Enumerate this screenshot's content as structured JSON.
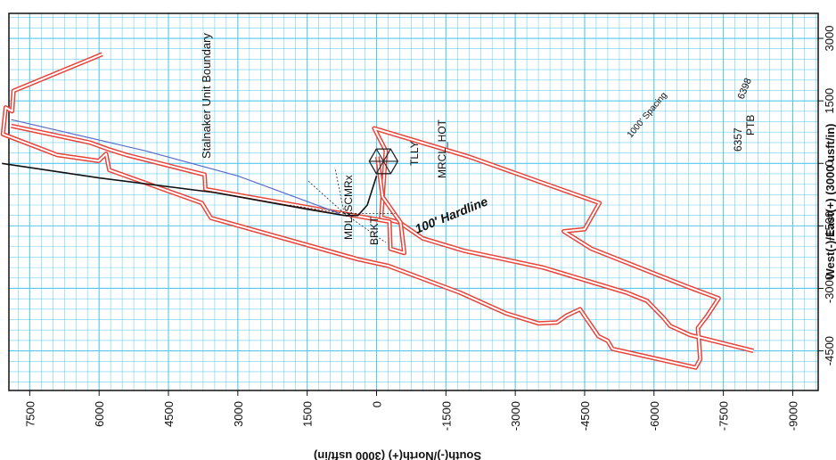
{
  "chart_data": {
    "type": "line",
    "xlabel": "South(-)/North(+) (3000 usft/in)",
    "ylabel": "West(-)/East(+) (3000 usft/in)",
    "x_ticks": [
      "7500",
      "6000",
      "4500",
      "3000",
      "1500",
      "0",
      "-1500",
      "-3000",
      "-4500",
      "-6000",
      "-7500",
      "-9000"
    ],
    "x_tick_values": [
      7500,
      6000,
      4500,
      3000,
      1500,
      0,
      -1500,
      -3000,
      -4500,
      -6000,
      -7500,
      -9000
    ],
    "y_ticks": [
      "3000",
      "1500",
      "0",
      "-1500",
      "-3000",
      "-4500"
    ],
    "y_tick_values": [
      3000,
      1500,
      0,
      -1500,
      -3000,
      -4500
    ],
    "xlim": [
      7950,
      -9550
    ],
    "ylim": [
      3600,
      -5450
    ],
    "grid": true,
    "colors": {
      "grid": "#55c8ee",
      "boundary": "#e8443a",
      "wellpath_black": "#111111",
      "wellpath_blue": "#5a6cc8",
      "hardline_label": "#e8443a",
      "blue_label": "#5a6cc8"
    },
    "annotations": {
      "unit_boundary": "Stalnaker Unit Boundary",
      "hardline": "100' Hardline",
      "spacing": "1000' Spacing",
      "well_6398": "6398",
      "well_6357": "6357",
      "ptb": "PTB",
      "mrcl_hot": "MRCL_HOT",
      "tlly": "TLLY",
      "mdl_scmr": "MDLxSCMRx",
      "brkt": "BRKT"
    },
    "series": [
      {
        "style": "boundary",
        "points": [
          [
            5930,
            2620
          ],
          [
            7850,
            1740
          ],
          [
            7880,
            1250
          ],
          [
            8020,
            1340
          ],
          [
            8080,
            700
          ],
          [
            6900,
            200
          ],
          [
            6010,
            60
          ],
          [
            5850,
            230
          ],
          [
            5780,
            -160
          ],
          [
            3780,
            -950
          ],
          [
            3580,
            -1310
          ],
          [
            400,
            -2300
          ],
          [
            -250,
            -2460
          ],
          [
            -1800,
            -3100
          ],
          [
            -2800,
            -3600
          ],
          [
            -3500,
            -3840
          ],
          [
            -3900,
            -3820
          ],
          [
            -4100,
            -3660
          ],
          [
            -4400,
            -3500
          ],
          [
            -4800,
            -4150
          ],
          [
            -5000,
            -4260
          ],
          [
            -5100,
            -4450
          ],
          [
            -6900,
            -4900
          ],
          [
            -7000,
            -4700
          ],
          [
            -6950,
            -3950
          ],
          [
            -7150,
            -3660
          ],
          [
            -7400,
            -3240
          ],
          [
            -6750,
            -2970
          ],
          [
            -4650,
            -2050
          ],
          [
            -4050,
            -1630
          ],
          [
            -4500,
            -1580
          ],
          [
            -4820,
            -950
          ],
          [
            -2000,
            160
          ],
          [
            50,
            840
          ],
          [
            -200,
            300
          ],
          [
            -100,
            -1300
          ],
          [
            -500,
            -1420
          ],
          [
            -1000,
            -1800
          ],
          [
            -1900,
            -2100
          ],
          [
            -3600,
            -2500
          ],
          [
            -5400,
            -3100
          ],
          [
            -5850,
            -3300
          ],
          [
            -6200,
            -3700
          ],
          [
            -6350,
            -3900
          ],
          [
            -6780,
            -4120
          ],
          [
            -8150,
            -4500
          ]
        ]
      }
    ]
  }
}
